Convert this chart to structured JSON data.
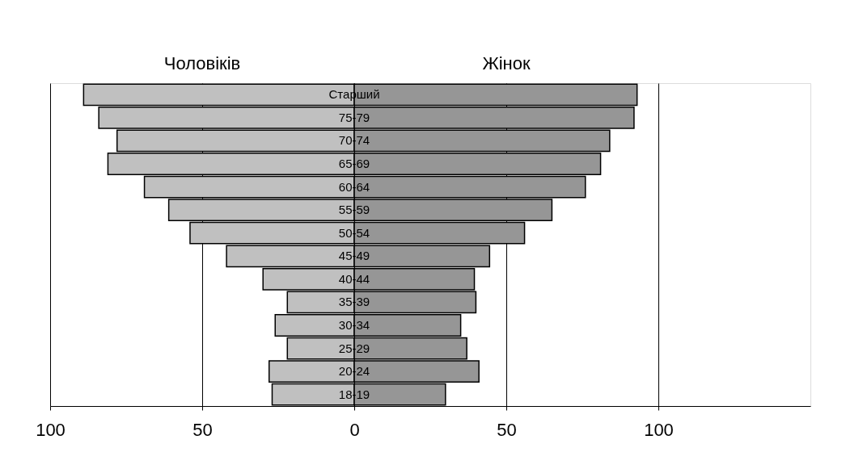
{
  "chart_data": {
    "type": "bar",
    "orientation": "horizontal",
    "categories": [
      "Старший",
      "75-79",
      "70-74",
      "65-69",
      "60-64",
      "55-59",
      "50-54",
      "45-49",
      "40-44",
      "35-39",
      "30-34",
      "25-29",
      "20-24",
      "18-19"
    ],
    "series": [
      {
        "name": "Чоловіків",
        "color": "#c0c0c0",
        "values": [
          -89,
          -84,
          -78,
          -81,
          -69,
          -61,
          -54,
          -42,
          -30,
          -22,
          -26,
          -22,
          -28,
          -27
        ]
      },
      {
        "name": "Жінок",
        "color": "#969696",
        "values": [
          93,
          92,
          84,
          81,
          76,
          65,
          56,
          44.5,
          39.5,
          40,
          35,
          37,
          41,
          30
        ]
      }
    ],
    "xlim": [
      -100,
      150
    ],
    "xticks": [
      {
        "value": -100,
        "label": "100"
      },
      {
        "value": -50,
        "label": "50"
      },
      0,
      50,
      100
    ],
    "grid": "x",
    "stacked": true,
    "legend": false
  }
}
